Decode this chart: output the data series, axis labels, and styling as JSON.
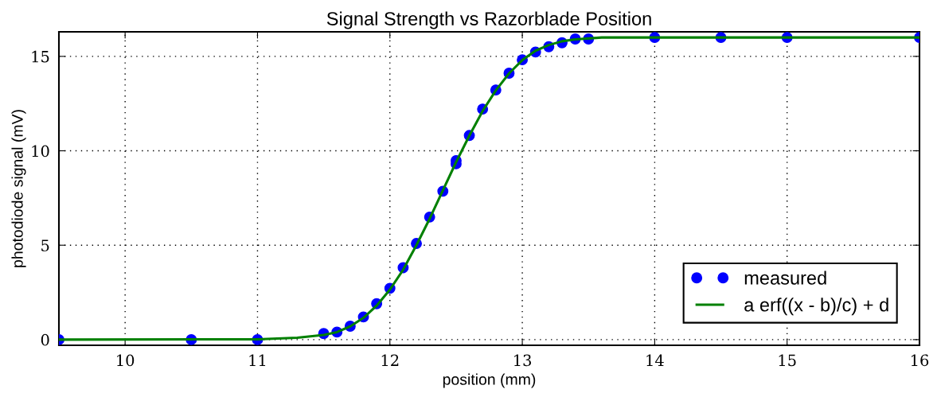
{
  "chart_data": {
    "type": "scatter",
    "title": "Signal Strength vs Razorblade Position",
    "xlabel": "position (mm)",
    "ylabel": "photodiode signal (mV)",
    "xlim": [
      9.5,
      16
    ],
    "xticks": [
      10,
      11,
      12,
      13,
      14,
      15,
      16
    ],
    "ylim": [
      -0.3,
      16.3
    ],
    "yticks": [
      0,
      5,
      10,
      15
    ],
    "grid": true,
    "legend": "bottom right",
    "series": [
      {
        "name": "measured",
        "color": "#0000ff",
        "marker": "circle",
        "x": [
          9.5,
          10.5,
          11,
          11.5,
          11.6,
          11.7,
          11.8,
          11.9,
          12.0,
          12.1,
          12.2,
          12.3,
          12.4,
          12.5,
          12.5,
          12.6,
          12.7,
          12.8,
          12.9,
          13.0,
          13.1,
          13.2,
          13.3,
          13.4,
          13.5,
          14,
          14.5,
          15,
          16
        ],
        "values": [
          0,
          0,
          0,
          0.32,
          0.4,
          0.71,
          1.2,
          1.9,
          2.72,
          3.81,
          5.09,
          6.49,
          7.86,
          9.48,
          9.31,
          10.81,
          12.21,
          13.22,
          14.11,
          14.82,
          15.23,
          15.51,
          15.72,
          15.92,
          15.92,
          16.0,
          16.0,
          16.0,
          16.0
        ]
      },
      {
        "name": "a erf((x - b)/c) + d",
        "type": "line",
        "color": "#008000",
        "marker": "none",
        "line_style": "solid",
        "x": [
          9.5,
          11,
          11.3,
          11.5,
          11.6,
          11.7,
          11.8,
          11.9,
          12.0,
          12.1,
          12.2,
          12.3,
          12.4,
          12.5,
          12.6,
          12.7,
          12.8,
          12.9,
          13.0,
          13.1,
          13.2,
          13.3,
          13.4,
          13.6,
          14,
          16
        ],
        "values": [
          0,
          0.02,
          0.1,
          0.25,
          0.4,
          0.7,
          1.15,
          1.8,
          2.65,
          3.7,
          5.0,
          6.4,
          7.9,
          9.4,
          10.8,
          12.1,
          13.2,
          14.1,
          14.8,
          15.3,
          15.6,
          15.8,
          15.9,
          16.0,
          16.0,
          16.0
        ]
      }
    ]
  }
}
